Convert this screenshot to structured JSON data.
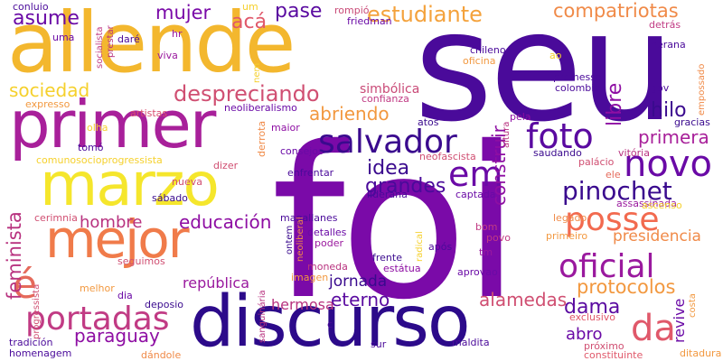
{
  "words": [
    {
      "text": "seu",
      "color": "#4a0a9a"
    },
    {
      "text": "foi",
      "color": "#7a0aa8"
    },
    {
      "text": "allende",
      "color": "#f3b72e"
    },
    {
      "text": "discurso",
      "color": "#2c0a8a"
    },
    {
      "text": "primer",
      "color": "#a8209a"
    },
    {
      "text": "marzo",
      "color": "#f5e62c"
    },
    {
      "text": "mejor",
      "color": "#f07b4a"
    },
    {
      "text": "salvador",
      "color": "#3a0a8e"
    },
    {
      "text": "posse",
      "color": "#f26a4f"
    },
    {
      "text": "novo",
      "color": "#6a0aa6"
    },
    {
      "text": "foto",
      "color": "#5a0aa0"
    },
    {
      "text": "portadas",
      "color": "#c13b84"
    },
    {
      "text": "oficial",
      "color": "#9a199e"
    },
    {
      "text": "em",
      "color": "#6a0aa6"
    },
    {
      "text": "pinochet",
      "color": "#3a0a8e"
    },
    {
      "text": "da",
      "color": "#e0586a"
    },
    {
      "text": "é",
      "color": "#e56a5b"
    },
    {
      "text": "despreciando",
      "color": "#d04f72"
    },
    {
      "text": "educación",
      "color": "#8e0ea3"
    },
    {
      "text": "estudiante",
      "color": "#f4a23c"
    },
    {
      "text": "compatriotas",
      "color": "#f08a48"
    },
    {
      "text": "asume",
      "color": "#6a0aa6"
    },
    {
      "text": "mujer",
      "color": "#7a0aa8"
    },
    {
      "text": "acá",
      "color": "#e0586a"
    },
    {
      "text": "pase",
      "color": "#5a0aa0"
    },
    {
      "text": "sociedad",
      "color": "#f5d02c"
    },
    {
      "text": "abriendo",
      "color": "#f2983f"
    },
    {
      "text": "idea",
      "color": "#3a0a8e"
    },
    {
      "text": "grandes",
      "color": "#4a0a9a"
    },
    {
      "text": "construir",
      "color": "#8e0ea3"
    },
    {
      "text": "libre",
      "color": "#8e0ea3"
    },
    {
      "text": "hilo",
      "color": "#3a0a8e"
    },
    {
      "text": "primera",
      "color": "#a8209a"
    },
    {
      "text": "presidencia",
      "color": "#f08a48"
    },
    {
      "text": "protocolos",
      "color": "#f2983f"
    },
    {
      "text": "dama",
      "color": "#5a0aa0"
    },
    {
      "text": "alamedas",
      "color": "#d04f72"
    },
    {
      "text": "eterno",
      "color": "#5a0aa0"
    },
    {
      "text": "jornada",
      "color": "#3a0a8e"
    },
    {
      "text": "paraguay",
      "color": "#8e0ea3"
    },
    {
      "text": "hombre",
      "color": "#b8327f"
    },
    {
      "text": "feminista",
      "color": "#b8327f"
    },
    {
      "text": "república",
      "color": "#9a199e"
    },
    {
      "text": "hermosa",
      "color": "#b8327f"
    },
    {
      "text": "abro",
      "color": "#6a0aa6"
    },
    {
      "text": "revive",
      "color": "#6a0aa6"
    },
    {
      "text": "simbólica",
      "color": "#c94a77"
    },
    {
      "text": "artistas",
      "color": "#d84e6f"
    },
    {
      "text": "neoliberalismo",
      "color": "#6a0aa6"
    },
    {
      "text": "confianza",
      "color": "#c13b84"
    },
    {
      "text": "expresso",
      "color": "#f2983f"
    },
    {
      "text": "olha",
      "color": "#f5d02c"
    },
    {
      "text": "tomó",
      "color": "#4a0a9a"
    },
    {
      "text": "comunosocioprogressista",
      "color": "#f5d02c"
    },
    {
      "text": "conluio",
      "color": "#4a0a9a"
    },
    {
      "text": "dizer",
      "color": "#d04f72"
    },
    {
      "text": "sábado",
      "color": "#3a0a8e"
    },
    {
      "text": "nueva",
      "color": "#d04f72"
    },
    {
      "text": "cerimnia",
      "color": "#d04f72"
    },
    {
      "text": "seguimos",
      "color": "#d04f72"
    },
    {
      "text": "melhor",
      "color": "#f2983f"
    },
    {
      "text": "dia",
      "color": "#6a0aa6"
    },
    {
      "text": "deposio",
      "color": "#3a0a8e"
    },
    {
      "text": "tradición",
      "color": "#4a0a9a"
    },
    {
      "text": "homenagem",
      "color": "#4a0a9a"
    },
    {
      "text": "dándole",
      "color": "#f08a48"
    },
    {
      "text": "socialista",
      "color": "#c13b84"
    },
    {
      "text": "prestar",
      "color": "#b8327f"
    },
    {
      "text": "daré",
      "color": "#4a0a9a"
    },
    {
      "text": "uma",
      "color": "#6a0aa6"
    },
    {
      "text": "hr",
      "color": "#9a199e"
    },
    {
      "text": "viva",
      "color": "#9a199e"
    },
    {
      "text": "um",
      "color": "#f5d02c"
    },
    {
      "text": "rompió",
      "color": "#c94a77"
    },
    {
      "text": "friedman",
      "color": "#6a0aa6"
    },
    {
      "text": "nem",
      "color": "#f5d02c"
    },
    {
      "text": "derrota",
      "color": "#f08a48"
    },
    {
      "text": "maior",
      "color": "#8e0ea3"
    },
    {
      "text": "consejos",
      "color": "#6a0aa6"
    },
    {
      "text": "enfrentar",
      "color": "#4a0a9a"
    },
    {
      "text": "liderana",
      "color": "#4a0a9a"
    },
    {
      "text": "captada",
      "color": "#6a0aa6"
    },
    {
      "text": "magallanes",
      "color": "#4a0a9a"
    },
    {
      "text": "detalles",
      "color": "#6a0aa6"
    },
    {
      "text": "poder",
      "color": "#9a199e"
    },
    {
      "text": "ontem",
      "color": "#3a0a8e"
    },
    {
      "text": "neoliberal",
      "color": "#f08a48"
    },
    {
      "text": "imagen",
      "color": "#f2983f"
    },
    {
      "text": "moneda",
      "color": "#b8327f"
    },
    {
      "text": "frente",
      "color": "#3a0a8e"
    },
    {
      "text": "estátua",
      "color": "#8e0ea3"
    },
    {
      "text": "radical",
      "color": "#f5d02c"
    },
    {
      "text": "após",
      "color": "#4a0a9a"
    },
    {
      "text": "aprovao",
      "color": "#6a0aa6"
    },
    {
      "text": "tm",
      "color": "#9a199e"
    },
    {
      "text": "bom",
      "color": "#c13b84"
    },
    {
      "text": "povo",
      "color": "#c13b84"
    },
    {
      "text": "sanguinária",
      "color": "#b8327f"
    },
    {
      "text": "c",
      "color": "#4a0a9a"
    },
    {
      "text": "sur",
      "color": "#4a0a9a"
    },
    {
      "text": "maldita",
      "color": "#4a0a9a"
    },
    {
      "text": "atos",
      "color": "#3a0a8e"
    },
    {
      "text": "neofascista",
      "color": "#d04f72"
    },
    {
      "text": "altura",
      "color": "#b8327f"
    },
    {
      "text": "saudando",
      "color": "#3a0a8e"
    },
    {
      "text": "pela",
      "color": "#8e0ea3"
    },
    {
      "text": "chileno",
      "color": "#4a0a9a"
    },
    {
      "text": "oficina",
      "color": "#f2983f"
    },
    {
      "text": "ao",
      "color": "#f5d02c"
    },
    {
      "text": "promessa",
      "color": "#4a0a9a"
    },
    {
      "text": "colombia",
      "color": "#4a0a9a"
    },
    {
      "text": "herana",
      "color": "#4a0a9a"
    },
    {
      "text": "gov",
      "color": "#4a0a9a"
    },
    {
      "text": "detrás",
      "color": "#c13b84"
    },
    {
      "text": "empossado",
      "color": "#f08a48"
    },
    {
      "text": "gracias",
      "color": "#3a0a8e"
    },
    {
      "text": "vitória",
      "color": "#b8327f"
    },
    {
      "text": "palácio",
      "color": "#d04f72"
    },
    {
      "text": "ele",
      "color": "#e56a5b"
    },
    {
      "text": "assassinada",
      "color": "#9a199e"
    },
    {
      "text": "ascenso",
      "color": "#f5d02c"
    },
    {
      "text": "legado",
      "color": "#f08a48"
    },
    {
      "text": "primeiro",
      "color": "#f2983f"
    },
    {
      "text": "exclusivo",
      "color": "#e0586a"
    },
    {
      "text": "próximo",
      "color": "#d04f72"
    },
    {
      "text": "constituinte",
      "color": "#e0586a"
    },
    {
      "text": "ditadura",
      "color": "#f2983f"
    },
    {
      "text": "costa",
      "color": "#f2983f"
    },
    {
      "text": "progressista",
      "color": "#d04f72"
    }
  ]
}
